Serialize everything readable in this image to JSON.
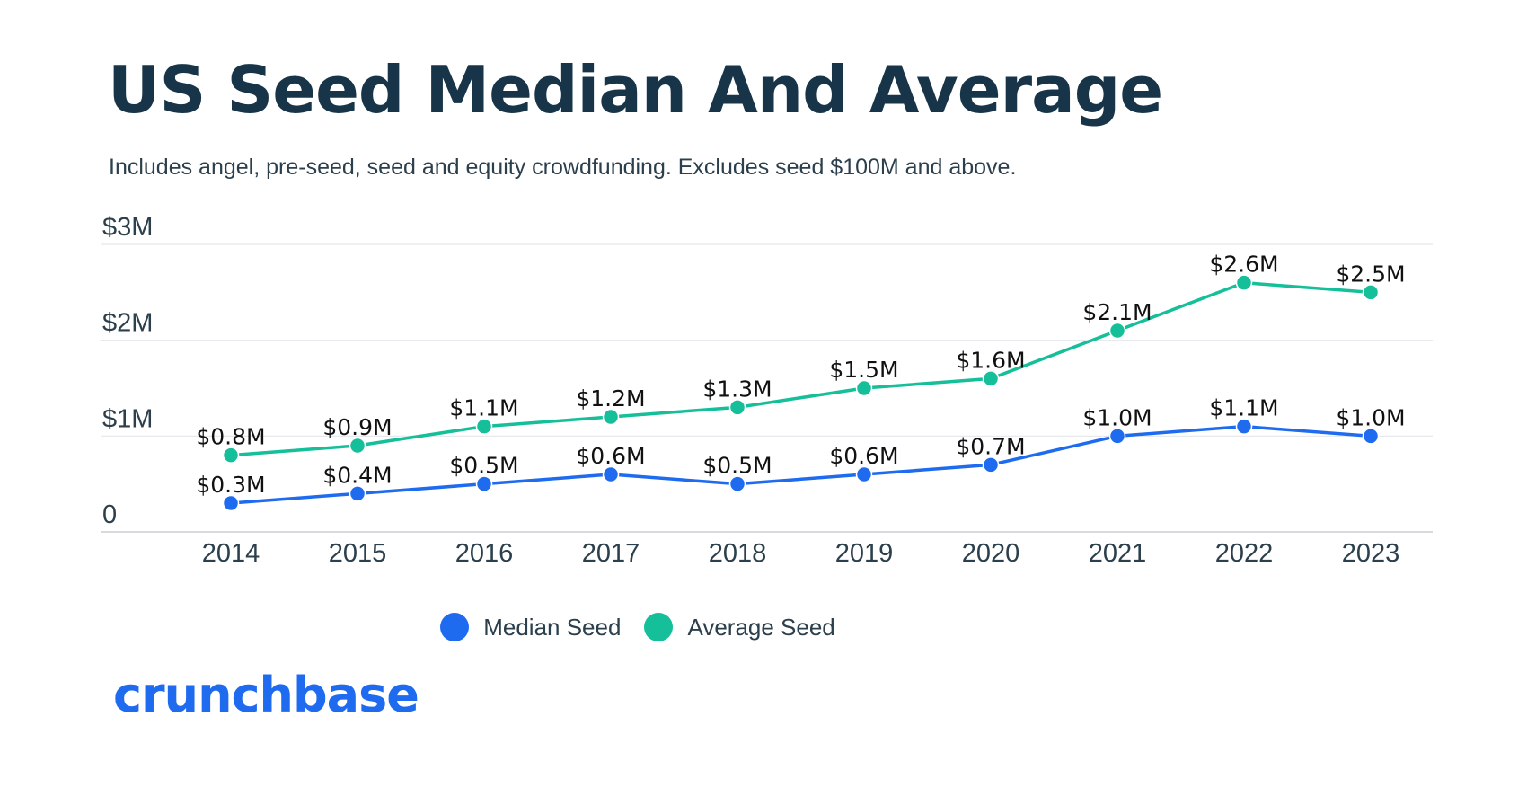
{
  "header": {
    "title": "US Seed Median And Average",
    "subtitle": "Includes angel, pre-seed, seed and equity crowdfunding. Excludes seed $100M and above."
  },
  "chart_data": {
    "type": "line",
    "categories": [
      "2014",
      "2015",
      "2016",
      "2017",
      "2018",
      "2019",
      "2020",
      "2021",
      "2022",
      "2023"
    ],
    "ylim": [
      0,
      3
    ],
    "yticks": [
      {
        "value": 0,
        "label": "0"
      },
      {
        "value": 1,
        "label": "$1M"
      },
      {
        "value": 2,
        "label": "$2M"
      },
      {
        "value": 3,
        "label": "$3M"
      }
    ],
    "grid": true,
    "legend_position": "bottom",
    "series": [
      {
        "name": "Median Seed",
        "color": "#1f6bf0",
        "values": [
          0.3,
          0.4,
          0.5,
          0.6,
          0.5,
          0.6,
          0.7,
          1.0,
          1.1,
          1.0
        ],
        "labels": [
          "$0.3M",
          "$0.4M",
          "$0.5M",
          "$0.6M",
          "$0.5M",
          "$0.6M",
          "$0.7M",
          "$1.0M",
          "$1.1M",
          "$1.0M"
        ]
      },
      {
        "name": "Average Seed",
        "color": "#14bf99",
        "values": [
          0.8,
          0.9,
          1.1,
          1.2,
          1.3,
          1.5,
          1.6,
          2.1,
          2.6,
          2.5
        ],
        "labels": [
          "$0.8M",
          "$0.9M",
          "$1.1M",
          "$1.2M",
          "$1.3M",
          "$1.5M",
          "$1.6M",
          "$2.1M",
          "$2.6M",
          "$2.5M"
        ]
      }
    ]
  },
  "brand": {
    "logo_text": "crunchbase",
    "color": "#1f6bf0"
  }
}
